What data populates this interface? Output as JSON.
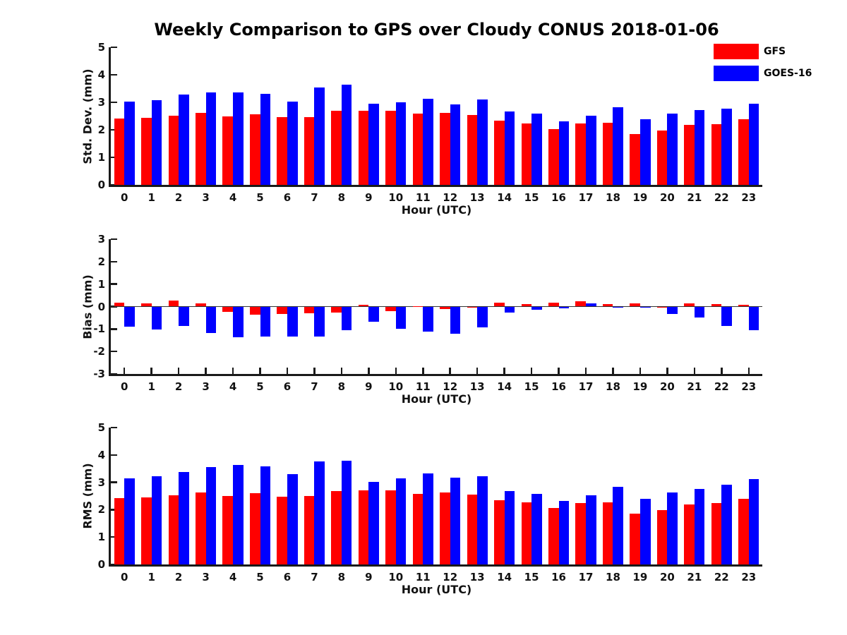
{
  "title": "Weekly Comparison to GPS over Cloudy CONUS 2018-01-06",
  "legend": {
    "position": "outside-upper-right",
    "items": [
      {
        "label": "GFS",
        "color": "#ff0000"
      },
      {
        "label": "GOES-16",
        "color": "#0000ff"
      }
    ]
  },
  "style": {
    "spine_color": "#1a1a1a",
    "text_color": "#111111",
    "background": "#ffffff",
    "zero_line_color": "#333333"
  },
  "chart_data": [
    {
      "type": "bar",
      "panel": "std_dev",
      "ylabel": "Std. Dev. (mm)",
      "xlabel": "Hour (UTC)",
      "ylim": [
        0,
        5
      ],
      "yticks": [
        0,
        1,
        2,
        3,
        4,
        5
      ],
      "grid": false,
      "categories": [
        "0",
        "1",
        "2",
        "3",
        "4",
        "5",
        "6",
        "7",
        "8",
        "9",
        "10",
        "11",
        "12",
        "13",
        "14",
        "15",
        "16",
        "17",
        "18",
        "19",
        "20",
        "21",
        "22",
        "23"
      ],
      "series": [
        {
          "name": "GFS",
          "color": "#ff0000",
          "values": [
            2.42,
            2.44,
            2.52,
            2.62,
            2.5,
            2.57,
            2.47,
            2.47,
            2.68,
            2.7,
            2.7,
            2.58,
            2.62,
            2.53,
            2.34,
            2.23,
            2.03,
            2.23,
            2.26,
            1.85,
            1.97,
            2.17,
            2.21,
            2.38
          ]
        },
        {
          "name": "GOES-16",
          "color": "#0000ff",
          "values": [
            3.03,
            3.08,
            3.27,
            3.35,
            3.36,
            3.32,
            3.02,
            3.55,
            3.64,
            2.96,
            2.99,
            3.13,
            2.93,
            3.09,
            2.67,
            2.6,
            2.32,
            2.52,
            2.82,
            2.39,
            2.6,
            2.72,
            2.77,
            2.94
          ]
        }
      ]
    },
    {
      "type": "bar",
      "panel": "bias",
      "ylabel": "Bias (mm)",
      "xlabel": "Hour (UTC)",
      "ylim": [
        -3,
        3
      ],
      "yticks": [
        -3,
        -2,
        -1,
        0,
        1,
        2,
        3
      ],
      "zero_line": true,
      "grid": false,
      "categories": [
        "0",
        "1",
        "2",
        "3",
        "4",
        "5",
        "6",
        "7",
        "8",
        "9",
        "10",
        "11",
        "12",
        "13",
        "14",
        "15",
        "16",
        "17",
        "18",
        "19",
        "20",
        "21",
        "22",
        "23"
      ],
      "series": [
        {
          "name": "GFS",
          "color": "#ff0000",
          "values": [
            0.17,
            0.14,
            0.28,
            0.14,
            -0.24,
            -0.37,
            -0.32,
            -0.31,
            -0.26,
            0.08,
            -0.21,
            0.03,
            -0.12,
            -0.04,
            0.16,
            0.12,
            0.16,
            0.22,
            0.1,
            0.15,
            -0.03,
            0.13,
            0.1,
            0.07
          ]
        },
        {
          "name": "GOES-16",
          "color": "#0000ff",
          "values": [
            -0.89,
            -1.01,
            -0.86,
            -1.17,
            -1.38,
            -1.34,
            -1.34,
            -1.32,
            -1.05,
            -0.67,
            -0.98,
            -1.12,
            -1.22,
            -0.93,
            -0.26,
            -0.13,
            -0.08,
            0.15,
            -0.05,
            -0.05,
            -0.33,
            -0.48,
            -0.87,
            -1.06
          ]
        }
      ]
    },
    {
      "type": "bar",
      "panel": "rms",
      "ylabel": "RMS (mm)",
      "xlabel": "Hour (UTC)",
      "ylim": [
        0,
        5
      ],
      "yticks": [
        0,
        1,
        2,
        3,
        4,
        5
      ],
      "grid": false,
      "categories": [
        "0",
        "1",
        "2",
        "3",
        "4",
        "5",
        "6",
        "7",
        "8",
        "9",
        "10",
        "11",
        "12",
        "13",
        "14",
        "15",
        "16",
        "17",
        "18",
        "19",
        "20",
        "21",
        "22",
        "23"
      ],
      "series": [
        {
          "name": "GFS",
          "color": "#ff0000",
          "values": [
            2.43,
            2.44,
            2.53,
            2.63,
            2.51,
            2.6,
            2.48,
            2.5,
            2.69,
            2.7,
            2.71,
            2.58,
            2.63,
            2.54,
            2.35,
            2.26,
            2.06,
            2.25,
            2.28,
            1.86,
            1.98,
            2.18,
            2.23,
            2.4
          ]
        },
        {
          "name": "GOES-16",
          "color": "#0000ff",
          "values": [
            3.15,
            3.22,
            3.37,
            3.55,
            3.64,
            3.57,
            3.29,
            3.77,
            3.79,
            3.02,
            3.15,
            3.32,
            3.17,
            3.22,
            2.69,
            2.59,
            2.33,
            2.53,
            2.83,
            2.4,
            2.62,
            2.76,
            2.91,
            3.12
          ]
        }
      ]
    }
  ]
}
